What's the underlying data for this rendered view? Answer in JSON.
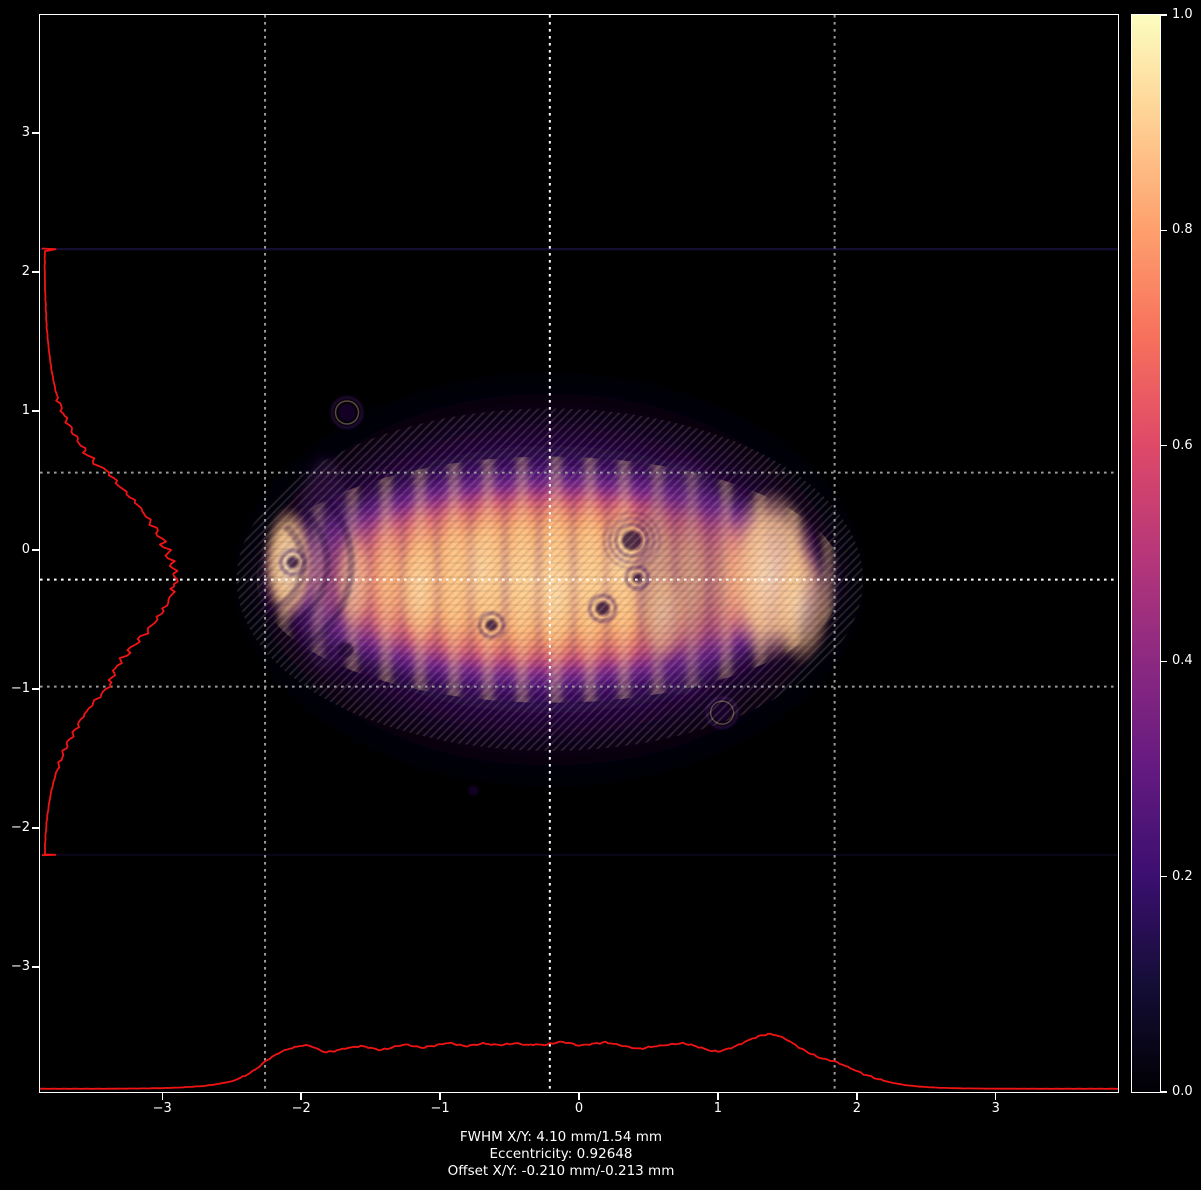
{
  "stats": {
    "fwhm": "FWHM X/Y: 4.10 mm/1.54 mm",
    "eccentricity": "Eccentricity: 0.92648",
    "offset": "Offset X/Y: -0.210 mm/-0.213 mm"
  },
  "chart_data": {
    "type": "heatmap",
    "title": "",
    "xlabel": "",
    "ylabel": "",
    "description": "Laser beam profile intensity map (magma colormap) with centroid crosshair, FWHM guide lines and red X/Y cross-section profiles",
    "x_axis": {
      "range_mm": [
        -3.88,
        3.88
      ],
      "ticks": [
        -3,
        -2,
        -1,
        0,
        1,
        2,
        3
      ],
      "tick_labels": [
        "−3",
        "−2",
        "−1",
        "0",
        "1",
        "2",
        "3"
      ]
    },
    "y_axis": {
      "range_mm": [
        -3.9,
        3.85
      ],
      "ticks": [
        3,
        2,
        1,
        0,
        -1,
        -2,
        -3
      ],
      "tick_labels": [
        "3",
        "2",
        "1",
        "0",
        "−1",
        "−2",
        "−3"
      ]
    },
    "colorbar": {
      "range": [
        0.0,
        1.0
      ],
      "ticks": [
        0.0,
        0.2,
        0.4,
        0.6,
        0.8,
        1.0
      ],
      "labels": [
        "0.0",
        "0.2",
        "0.4",
        "0.6",
        "0.8",
        "1.0"
      ],
      "colormap": "magma",
      "stops": [
        [
          0.0,
          "#000004"
        ],
        [
          0.1,
          "#140e36"
        ],
        [
          0.2,
          "#3b0f70"
        ],
        [
          0.3,
          "#641a80"
        ],
        [
          0.4,
          "#8c2981"
        ],
        [
          0.5,
          "#b73779"
        ],
        [
          0.6,
          "#de4968"
        ],
        [
          0.7,
          "#f7705c"
        ],
        [
          0.8,
          "#fe9f6d"
        ],
        [
          0.9,
          "#fecf92"
        ],
        [
          1.0,
          "#fcfdbf"
        ]
      ]
    },
    "beam": {
      "center_mm": [
        -0.21,
        -0.213
      ],
      "fwhm_mm": [
        4.1,
        1.54
      ],
      "eccentricity": 0.92648,
      "roi_y_mm": [
        -2.194,
        2.166
      ]
    },
    "guide_colors": {
      "center": "#ffffff",
      "fwhm": "#9a9a9a"
    },
    "profile_color": "#f01414",
    "profile_x": [
      [
        -3.88,
        0.004
      ],
      [
        -3.5,
        0.004
      ],
      [
        -3.2,
        0.008
      ],
      [
        -3.0,
        0.015
      ],
      [
        -2.85,
        0.03
      ],
      [
        -2.7,
        0.055
      ],
      [
        -2.6,
        0.09
      ],
      [
        -2.5,
        0.14
      ],
      [
        -2.42,
        0.22
      ],
      [
        -2.35,
        0.32
      ],
      [
        -2.3,
        0.41
      ],
      [
        -2.26,
        0.5
      ],
      [
        -2.21,
        0.58
      ],
      [
        -2.16,
        0.66
      ],
      [
        -2.1,
        0.72
      ],
      [
        -2.03,
        0.77
      ],
      [
        -1.97,
        0.8
      ],
      [
        -1.92,
        0.77
      ],
      [
        -1.87,
        0.71
      ],
      [
        -1.82,
        0.67
      ],
      [
        -1.76,
        0.69
      ],
      [
        -1.7,
        0.73
      ],
      [
        -1.63,
        0.76
      ],
      [
        -1.57,
        0.78
      ],
      [
        -1.5,
        0.75
      ],
      [
        -1.44,
        0.71
      ],
      [
        -1.38,
        0.73
      ],
      [
        -1.31,
        0.78
      ],
      [
        -1.25,
        0.81
      ],
      [
        -1.19,
        0.78
      ],
      [
        -1.13,
        0.75
      ],
      [
        -1.06,
        0.78
      ],
      [
        -1.0,
        0.81
      ],
      [
        -0.94,
        0.84
      ],
      [
        -0.88,
        0.81
      ],
      [
        -0.82,
        0.78
      ],
      [
        -0.75,
        0.8
      ],
      [
        -0.69,
        0.83
      ],
      [
        -0.63,
        0.81
      ],
      [
        -0.56,
        0.8
      ],
      [
        -0.5,
        0.82
      ],
      [
        -0.44,
        0.83
      ],
      [
        -0.38,
        0.8
      ],
      [
        -0.31,
        0.81
      ],
      [
        -0.25,
        0.8
      ],
      [
        -0.19,
        0.83
      ],
      [
        -0.13,
        0.86
      ],
      [
        -0.06,
        0.83
      ],
      [
        0.0,
        0.79
      ],
      [
        0.06,
        0.81
      ],
      [
        0.13,
        0.83
      ],
      [
        0.19,
        0.85
      ],
      [
        0.25,
        0.82
      ],
      [
        0.31,
        0.79
      ],
      [
        0.38,
        0.75
      ],
      [
        0.44,
        0.73
      ],
      [
        0.5,
        0.76
      ],
      [
        0.56,
        0.78
      ],
      [
        0.63,
        0.8
      ],
      [
        0.69,
        0.82
      ],
      [
        0.75,
        0.83
      ],
      [
        0.81,
        0.8
      ],
      [
        0.88,
        0.75
      ],
      [
        0.94,
        0.7
      ],
      [
        1.0,
        0.68
      ],
      [
        1.06,
        0.72
      ],
      [
        1.13,
        0.78
      ],
      [
        1.19,
        0.85
      ],
      [
        1.25,
        0.92
      ],
      [
        1.31,
        0.97
      ],
      [
        1.36,
        1.0
      ],
      [
        1.42,
        0.98
      ],
      [
        1.48,
        0.92
      ],
      [
        1.54,
        0.83
      ],
      [
        1.6,
        0.73
      ],
      [
        1.67,
        0.64
      ],
      [
        1.73,
        0.57
      ],
      [
        1.79,
        0.53
      ],
      [
        1.84,
        0.5
      ],
      [
        1.9,
        0.44
      ],
      [
        1.97,
        0.36
      ],
      [
        2.05,
        0.27
      ],
      [
        2.14,
        0.19
      ],
      [
        2.24,
        0.12
      ],
      [
        2.35,
        0.07
      ],
      [
        2.47,
        0.04
      ],
      [
        2.6,
        0.022
      ],
      [
        2.75,
        0.012
      ],
      [
        2.95,
        0.007
      ],
      [
        3.2,
        0.005
      ],
      [
        3.5,
        0.004
      ],
      [
        3.88,
        0.004
      ]
    ],
    "profile_y": [
      [
        2.17,
        0.0
      ],
      [
        2.165,
        0.1
      ],
      [
        2.15,
        0.022
      ],
      [
        2.05,
        0.02
      ],
      [
        1.9,
        0.022
      ],
      [
        1.75,
        0.028
      ],
      [
        1.6,
        0.035
      ],
      [
        1.45,
        0.05
      ],
      [
        1.3,
        0.07
      ],
      [
        1.15,
        0.1
      ],
      [
        1.0,
        0.15
      ],
      [
        0.9,
        0.2
      ],
      [
        0.8,
        0.26
      ],
      [
        0.7,
        0.33
      ],
      [
        0.62,
        0.4
      ],
      [
        0.557,
        0.5
      ],
      [
        0.48,
        0.56
      ],
      [
        0.4,
        0.64
      ],
      [
        0.32,
        0.72
      ],
      [
        0.24,
        0.78
      ],
      [
        0.16,
        0.84
      ],
      [
        0.08,
        0.89
      ],
      [
        0.0,
        0.93
      ],
      [
        -0.08,
        0.96
      ],
      [
        -0.15,
        0.99
      ],
      [
        -0.21,
        1.0
      ],
      [
        -0.28,
        0.98
      ],
      [
        -0.36,
        0.95
      ],
      [
        -0.44,
        0.9
      ],
      [
        -0.52,
        0.84
      ],
      [
        -0.6,
        0.77
      ],
      [
        -0.68,
        0.69
      ],
      [
        -0.76,
        0.62
      ],
      [
        -0.85,
        0.55
      ],
      [
        -0.92,
        0.52
      ],
      [
        -0.983,
        0.5
      ],
      [
        -1.06,
        0.42
      ],
      [
        -1.14,
        0.35
      ],
      [
        -1.22,
        0.29
      ],
      [
        -1.31,
        0.24
      ],
      [
        -1.41,
        0.18
      ],
      [
        -1.51,
        0.14
      ],
      [
        -1.62,
        0.1
      ],
      [
        -1.73,
        0.07
      ],
      [
        -1.84,
        0.05
      ],
      [
        -1.95,
        0.035
      ],
      [
        -2.05,
        0.027
      ],
      [
        -2.13,
        0.022
      ],
      [
        -2.19,
        0.022
      ],
      [
        -2.193,
        0.1
      ],
      [
        -2.196,
        0.0
      ]
    ],
    "bright_spots": [
      [
        -2.09,
        -0.1,
        26,
        58,
        0.85
      ],
      [
        -1.62,
        -0.22,
        20,
        48,
        0.4
      ],
      [
        -1.15,
        -0.29,
        22,
        52,
        0.45
      ],
      [
        -0.71,
        -0.14,
        20,
        55,
        0.4
      ],
      [
        -0.17,
        -0.32,
        22,
        55,
        0.45
      ],
      [
        0.3,
        -0.07,
        20,
        50,
        0.4
      ],
      [
        0.62,
        -0.47,
        22,
        48,
        0.4
      ],
      [
        1.38,
        -0.18,
        48,
        88,
        0.8
      ],
      [
        1.6,
        -0.4,
        30,
        60,
        0.55
      ]
    ],
    "dark_spots": [
      [
        -1.67,
        0.99,
        9,
        1
      ],
      [
        -1.68,
        0.5,
        4,
        0
      ],
      [
        0.38,
        0.07,
        10,
        2
      ],
      [
        0.42,
        -0.2,
        5,
        1
      ],
      [
        0.17,
        -0.42,
        7,
        1
      ],
      [
        -2.06,
        -0.09,
        6,
        1
      ],
      [
        -1.68,
        -0.72,
        8,
        0
      ],
      [
        -0.63,
        -0.54,
        6,
        1
      ],
      [
        1.03,
        -1.17,
        9,
        1
      ],
      [
        -0.76,
        -1.73,
        5,
        0
      ]
    ],
    "dim_bands": [
      [
        0.75,
        -0.2,
        45,
        1.1
      ],
      [
        -1.83,
        -0.1,
        30,
        1.0
      ]
    ],
    "ripple_rings": [
      [
        -2.33,
        -0.1,
        48
      ],
      [
        -2.33,
        -0.1,
        72
      ],
      [
        -2.33,
        -0.1,
        96
      ]
    ]
  }
}
